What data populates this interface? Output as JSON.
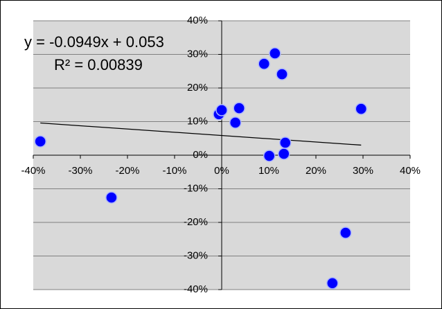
{
  "chart_data": {
    "type": "scatter",
    "series": [
      {
        "color": "#0000ff",
        "x": [
          -38.5,
          -23.4,
          -0.6,
          0,
          2.9,
          3.7,
          9.0,
          10.1,
          11.3,
          12.8,
          13.2,
          13.5,
          23.5,
          26.3,
          29.6
        ],
        "values": [
          4.1,
          -12.6,
          12.2,
          13.4,
          9.7,
          14.0,
          27.2,
          -0.2,
          30.3,
          24.1,
          0.4,
          3.7,
          -38.1,
          -23.1,
          13.8
        ]
      }
    ],
    "trendline": {
      "equation": "y = -0.0949x + 0.053",
      "r_squared": "R² = 0.00839",
      "color": "#000000"
    },
    "xlim": [
      -40,
      40
    ],
    "xticks": [
      {
        "value": -40,
        "label": "-40%"
      },
      {
        "value": -30,
        "label": "-30%"
      },
      {
        "value": -20,
        "label": "-20%"
      },
      {
        "value": -10,
        "label": "-10%"
      },
      {
        "value": 0,
        "label": "0%"
      },
      {
        "value": 10,
        "label": "10%"
      },
      {
        "value": 20,
        "label": "20%"
      },
      {
        "value": 30,
        "label": "30%"
      },
      {
        "value": 40,
        "label": "40%"
      }
    ],
    "ylim": [
      -40,
      40
    ],
    "yticks": [
      {
        "value": -40,
        "label": "-40%"
      },
      {
        "value": -30,
        "label": "-30%"
      },
      {
        "value": -20,
        "label": "-20%"
      },
      {
        "value": -10,
        "label": "-10%"
      },
      {
        "value": 0,
        "label": "0%"
      },
      {
        "value": 10,
        "label": "10%"
      },
      {
        "value": 20,
        "label": "20%"
      },
      {
        "value": 30,
        "label": "30%"
      },
      {
        "value": 40,
        "label": "40%"
      }
    ],
    "grid": true,
    "plot_background": "#d9d9d9"
  }
}
